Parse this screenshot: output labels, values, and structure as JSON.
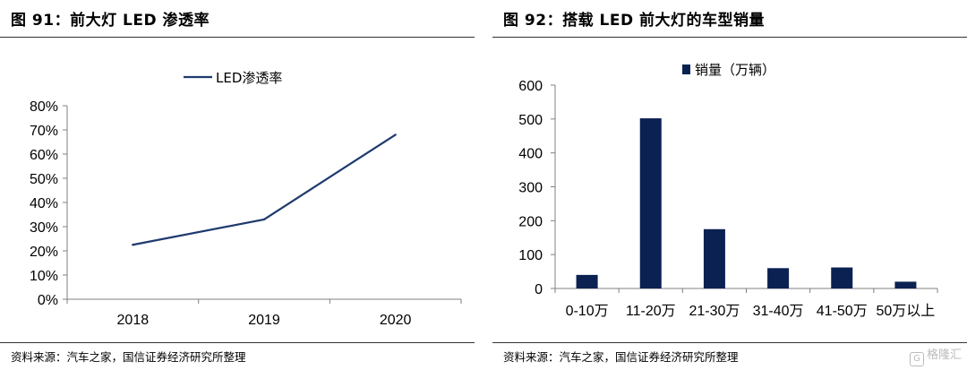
{
  "left": {
    "title": "图 91：前大灯 LED 渗透率",
    "source": "资料来源：汽车之家，国信证券经济研究所整理"
  },
  "right": {
    "title": "图 92：搭载 LED 前大灯的车型销量",
    "source": "资料来源：汽车之家，国信证券经济研究所整理"
  },
  "watermark": "格隆汇",
  "colors": {
    "series": "#1f3a6e",
    "bar": "#0a2152",
    "axis": "#808080"
  },
  "chart_data": [
    {
      "type": "line",
      "x": [
        "2018",
        "2019",
        "2020"
      ],
      "series": [
        {
          "name": "LED渗透率",
          "values": [
            22.5,
            33,
            68
          ]
        }
      ],
      "yticks": [
        "0%",
        "10%",
        "20%",
        "30%",
        "40%",
        "50%",
        "60%",
        "70%",
        "80%"
      ],
      "ylim": [
        0,
        80
      ],
      "legend": "top-center",
      "grid": false
    },
    {
      "type": "bar",
      "categories": [
        "0-10万",
        "11-20万",
        "21-30万",
        "31-40万",
        "41-50万",
        "50万以上"
      ],
      "series": [
        {
          "name": "销量（万辆）",
          "values": [
            40,
            502,
            175,
            60,
            62,
            20
          ]
        }
      ],
      "yticks": [
        "0",
        "100",
        "200",
        "300",
        "400",
        "500",
        "600"
      ],
      "ylim": [
        0,
        600
      ],
      "legend": "top-center",
      "grid": false
    }
  ]
}
